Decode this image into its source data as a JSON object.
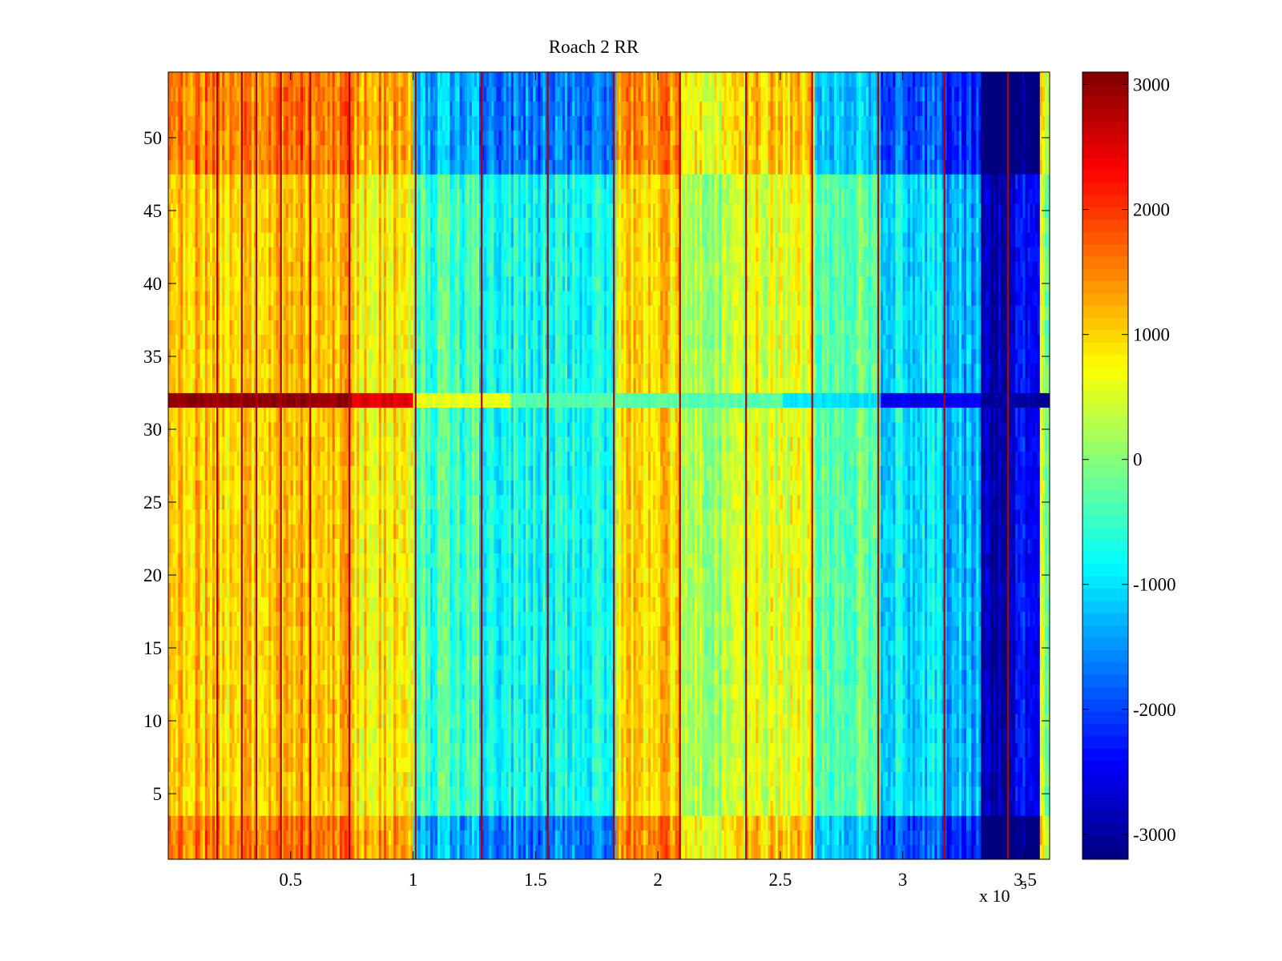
{
  "chart_data": {
    "type": "heatmap",
    "title": "Roach 2 RR",
    "xlabel": "",
    "ylabel": "",
    "x_exponent_label": "x 10",
    "x_exponent_power": "5",
    "xlim": [
      0,
      3.6
    ],
    "ylim": [
      0.5,
      54.5
    ],
    "x_ticks": [
      0.5,
      1,
      1.5,
      2,
      2.5,
      3,
      3.5
    ],
    "x_tick_labels": [
      "0.5",
      "1",
      "1.5",
      "2",
      "2.5",
      "3",
      "3.5"
    ],
    "y_ticks": [
      5,
      10,
      15,
      20,
      25,
      30,
      35,
      40,
      45,
      50
    ],
    "y_tick_labels": [
      "5",
      "10",
      "15",
      "20",
      "25",
      "30",
      "35",
      "40",
      "45",
      "50"
    ],
    "rows": 54,
    "colormap": "jet",
    "clim": [
      -3200,
      3100
    ],
    "colorbar": {
      "ticks": [
        3000,
        2000,
        1000,
        0,
        -1000,
        -2000,
        -3000
      ],
      "tick_labels": [
        "3000",
        "2000",
        "1000",
        "0",
        "-1000",
        "-2000",
        "-3000"
      ]
    },
    "column_segments": [
      {
        "x_start": 0.0,
        "x_end": 0.2,
        "value": 1100
      },
      {
        "x_start": 0.2,
        "x_end": 0.5,
        "value": 950
      },
      {
        "x_start": 0.5,
        "x_end": 0.75,
        "value": 1200
      },
      {
        "x_start": 0.75,
        "x_end": 1.0,
        "value": 850
      },
      {
        "x_start": 1.0,
        "x_end": 1.27,
        "value": -450
      },
      {
        "x_start": 1.27,
        "x_end": 1.55,
        "value": -750
      },
      {
        "x_start": 1.55,
        "x_end": 1.83,
        "value": -650
      },
      {
        "x_start": 1.83,
        "x_end": 2.08,
        "value": 1000
      },
      {
        "x_start": 2.08,
        "x_end": 2.35,
        "value": 150
      },
      {
        "x_start": 2.35,
        "x_end": 2.63,
        "value": 550
      },
      {
        "x_start": 2.63,
        "x_end": 2.9,
        "value": -150
      },
      {
        "x_start": 2.9,
        "x_end": 3.17,
        "value": -950
      },
      {
        "x_start": 3.17,
        "x_end": 3.31,
        "value": -1300
      },
      {
        "x_start": 3.31,
        "x_end": 3.42,
        "value": -3000
      },
      {
        "x_start": 3.42,
        "x_end": 3.55,
        "value": -2500
      },
      {
        "x_start": 3.55,
        "x_end": 3.6,
        "value": 200
      }
    ],
    "row_32_band": [
      {
        "x_start": 0.0,
        "x_end": 0.75,
        "value": 3000
      },
      {
        "x_start": 0.75,
        "x_end": 1.0,
        "value": 2500
      },
      {
        "x_start": 1.0,
        "x_end": 1.4,
        "value": 600
      },
      {
        "x_start": 1.4,
        "x_end": 2.5,
        "value": -300
      },
      {
        "x_start": 2.5,
        "x_end": 2.9,
        "value": -1000
      },
      {
        "x_start": 2.9,
        "x_end": 3.31,
        "value": -2500
      },
      {
        "x_start": 3.31,
        "x_end": 3.6,
        "value": -3000
      }
    ],
    "vertical_line_positions": [
      0.2,
      0.3,
      0.36,
      0.46,
      0.58,
      0.74,
      1.01,
      1.28,
      1.55,
      1.82,
      2.09,
      2.36,
      2.63,
      2.9,
      3.17,
      3.43
    ],
    "vertical_line_value": 2200
  }
}
